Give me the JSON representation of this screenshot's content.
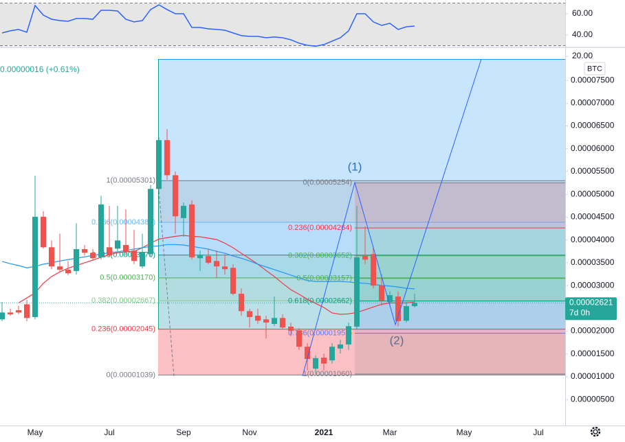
{
  "chart_data": {
    "type": "candlestick",
    "currency": "BTC",
    "legend_change": "0.00000016 (+0.61%)",
    "categories": [
      null,
      null,
      null,
      null,
      "May",
      null,
      null,
      null,
      null,
      null,
      null,
      null,
      null,
      "Jul",
      null,
      null,
      null,
      null,
      null,
      null,
      null,
      null,
      "Sep",
      null,
      null,
      null,
      null,
      null,
      null,
      null,
      "Nov",
      null,
      null,
      null,
      null,
      null,
      null,
      null,
      null,
      "2021",
      null,
      null,
      null,
      null,
      null,
      null,
      null,
      "Mar",
      null,
      null,
      null,
      null,
      null,
      null,
      null,
      null,
      "May",
      null,
      null,
      null,
      null,
      null,
      null,
      null,
      null,
      "Jul"
    ],
    "up_color": "#26a69a",
    "down_color": "#ef5350",
    "open": [
      2.26e-05,
      2.41e-05,
      2.46e-05,
      2.59e-05,
      2.31e-05,
      4.51e-05,
      3.84e-05,
      3.42e-05,
      3.35e-05,
      3.32e-05,
      3.8e-05,
      3.72e-05,
      3.62e-05,
      3.84e-05,
      3.81e-05,
      3.89e-05,
      3.77e-05,
      3.42e-05,
      3.69e-05,
      5.12e-05,
      6.19e-05,
      5.42e-05,
      4.48e-05,
      4.78e-05,
      3.6e-05,
      3.65e-05,
      3.54e-05,
      3.42e-05,
      3.39e-05,
      2.82e-05,
      2.44e-05,
      2.34e-05,
      2.26e-05,
      2.16e-05,
      2.29e-05,
      2.1e-05,
      2.01e-05,
      1.66e-05,
      1.18e-05,
      1.42e-05,
      1.36e-05,
      1.62e-05,
      1.71e-05,
      2.1e-05,
      3.65e-05,
      3.69e-05,
      3e-05,
      2.64e-05,
      2.76e-05,
      2.23e-05,
      2.55e-05,
      null,
      null,
      null,
      null,
      null,
      null,
      null,
      null,
      null,
      null,
      null,
      null,
      null,
      null,
      null
    ],
    "high": [
      2.64e-05,
      2.49e-05,
      2.56e-05,
      2.69e-05,
      5.41e-05,
      4.63e-05,
      3.99e-05,
      4.14e-05,
      3.54e-05,
      4.37e-05,
      3.89e-05,
      3.8e-05,
      4.97e-05,
      4.75e-05,
      4.75e-05,
      4.67e-05,
      4.22e-05,
      4.14e-05,
      5.2e-05,
      6.25e-05,
      6.43e-05,
      5.5e-05,
      4.82e-05,
      4.87e-05,
      3.77e-05,
      3.81e-05,
      3.77e-05,
      3.69e-05,
      3.47e-05,
      2.94e-05,
      2.49e-05,
      2.49e-05,
      2.34e-05,
      2.76e-05,
      2.37e-05,
      2.19e-05,
      2.07e-05,
      1.74e-05,
      1.47e-05,
      1.51e-05,
      1.74e-05,
      1.81e-05,
      2.19e-05,
      4.75e-05,
      4.3e-05,
      3.84e-05,
      3.24e-05,
      2.87e-05,
      2.87e-05,
      2.64e-05,
      2.82e-05,
      null,
      null,
      null,
      null,
      null,
      null,
      null,
      null,
      null,
      null,
      null,
      null,
      null,
      null,
      null
    ],
    "low": [
      2.22e-05,
      2.34e-05,
      2.37e-05,
      2.22e-05,
      2.26e-05,
      3.81e-05,
      3.36e-05,
      3.3e-05,
      3.23e-05,
      3.24e-05,
      3.66e-05,
      3.54e-05,
      3.57e-05,
      3.62e-05,
      3.72e-05,
      3.66e-05,
      3.47e-05,
      3.38e-05,
      3.62e-05,
      5.05e-05,
      5.32e-05,
      4.14e-05,
      4.07e-05,
      3.57e-05,
      3.32e-05,
      3.47e-05,
      3.17e-05,
      3.24e-05,
      2.79e-05,
      2.34e-05,
      2.08e-05,
      2.16e-05,
      1.84e-05,
      2.11e-05,
      2.04e-05,
      1.89e-05,
      1.59e-05,
      1.14e-05,
      1.06e-05,
      1.14e-05,
      1.29e-05,
      1.51e-05,
      1.59e-05,
      2.04e-05,
      3.47e-05,
      2.94e-05,
      2.56e-05,
      2.56e-05,
      2.11e-05,
      2.19e-05,
      2.52e-05,
      null,
      null,
      null,
      null,
      null,
      null,
      null,
      null,
      null,
      null,
      null,
      null,
      null,
      null,
      null
    ],
    "close": [
      2.41e-05,
      2.37e-05,
      2.41e-05,
      2.29e-05,
      4.51e-05,
      3.84e-05,
      3.42e-05,
      3.35e-05,
      3.27e-05,
      3.8e-05,
      3.72e-05,
      3.6e-05,
      4.78e-05,
      3.66e-05,
      3.99e-05,
      3.74e-05,
      3.54e-05,
      3.74e-05,
      5.12e-05,
      6.19e-05,
      5.42e-05,
      4.52e-05,
      4.75e-05,
      3.62e-05,
      3.66e-05,
      3.5e-05,
      3.42e-05,
      3.36e-05,
      2.82e-05,
      2.44e-05,
      2.31e-05,
      2.23e-05,
      2.19e-05,
      2.29e-05,
      2.08e-05,
      2.01e-05,
      1.66e-05,
      1.39e-05,
      1.41e-05,
      1.29e-05,
      1.66e-05,
      1.71e-05,
      2.11e-05,
      3.62e-05,
      3.57e-05,
      3e-05,
      2.67e-05,
      2.79e-05,
      2.22e-05,
      2.55e-05,
      2.621e-05,
      null,
      null,
      null,
      null,
      null,
      null,
      null,
      null,
      null,
      null,
      null,
      null,
      null,
      null,
      null
    ],
    "overlays": [
      {
        "color": "#f23645",
        "values": [
          null,
          null,
          2.62e-05,
          2.73e-05,
          2.84e-05,
          3.05e-05,
          3.2e-05,
          3.3e-05,
          3.38e-05,
          3.44e-05,
          3.5e-05,
          3.56e-05,
          3.62e-05,
          3.68e-05,
          3.72e-05,
          3.74e-05,
          3.75e-05,
          3.83e-05,
          3.93e-05,
          4.02e-05,
          4.05e-05,
          4.08e-05,
          4.1e-05,
          4.08e-05,
          4.07e-05,
          4.04e-05,
          4.01e-05,
          3.93e-05,
          3.83e-05,
          3.71e-05,
          3.59e-05,
          3.47e-05,
          3.33e-05,
          3.2e-05,
          3.05e-05,
          2.91e-05,
          2.81e-05,
          2.7e-05,
          2.61e-05,
          2.52e-05,
          2.4e-05,
          2.37e-05,
          2.38e-05,
          2.41e-05,
          2.47e-05,
          2.53e-05,
          2.59e-05,
          2.62e-05,
          2.62e-05,
          2.62e-05,
          2.64e-05,
          null,
          null,
          null,
          null,
          null,
          null,
          null,
          null,
          null,
          null,
          null,
          null,
          null,
          null,
          null
        ]
      },
      {
        "color": "#2196f3",
        "values": [
          3.53e-05,
          3.48e-05,
          3.44e-05,
          3.39e-05,
          3.42e-05,
          3.47e-05,
          3.5e-05,
          3.54e-05,
          3.57e-05,
          3.6e-05,
          3.63e-05,
          3.66e-05,
          3.69e-05,
          3.72e-05,
          3.74e-05,
          3.77e-05,
          3.8e-05,
          3.83e-05,
          3.86e-05,
          3.87e-05,
          3.9e-05,
          3.9e-05,
          3.89e-05,
          3.86e-05,
          3.83e-05,
          3.8e-05,
          3.75e-05,
          3.71e-05,
          3.65e-05,
          3.6e-05,
          3.54e-05,
          3.47e-05,
          3.41e-05,
          3.35e-05,
          3.29e-05,
          3.23e-05,
          3.17e-05,
          3.11e-05,
          3.09e-05,
          3.09e-05,
          3.09e-05,
          3.09e-05,
          3.08e-05,
          3.06e-05,
          3.05e-05,
          3.03e-05,
          3e-05,
          2.99e-05,
          2.97e-05,
          2.94e-05,
          2.93e-05,
          null,
          null,
          null,
          null,
          null,
          null,
          null,
          null,
          null,
          null,
          null,
          null,
          null,
          null,
          null
        ]
      }
    ],
    "ylim": [
      7e-08,
      7.968e-05
    ],
    "yticks": [
      {
        "value": 7.5e-05,
        "label": "0.00007500"
      },
      {
        "value": 7e-05,
        "label": "0.00007000"
      },
      {
        "value": 6.5e-05,
        "label": "0.00006500"
      },
      {
        "value": 6e-05,
        "label": "0.00006000"
      },
      {
        "value": 5.5e-05,
        "label": "0.00005500"
      },
      {
        "value": 5e-05,
        "label": "0.00005000"
      },
      {
        "value": 4.5e-05,
        "label": "0.00004500"
      },
      {
        "value": 4e-05,
        "label": "0.00004000"
      },
      {
        "value": 3.5e-05,
        "label": "0.00003500"
      },
      {
        "value": 3e-05,
        "label": "0.00003000"
      },
      {
        "value": 2.5e-05,
        "label": "0.00002500"
      },
      {
        "value": 2e-05,
        "label": "0.00002000"
      },
      {
        "value": 1.5e-05,
        "label": "0.00001500"
      },
      {
        "value": 1e-05,
        "label": "0.00001000"
      },
      {
        "value": 5e-06,
        "label": "0.00000500"
      }
    ],
    "last_price": {
      "value": 2.621e-05,
      "label": "0.00002621"
    },
    "countdown": "7d 0h",
    "rsi": {
      "color": "#2962ff",
      "values": [
        41.9,
        43.9,
        45.2,
        42.6,
        67.7,
        58.7,
        54.8,
        53.5,
        52.9,
        55.5,
        55.5,
        54.8,
        63.2,
        63.2,
        62.6,
        54.8,
        52.3,
        53.5,
        63.9,
        68.4,
        63.9,
        60,
        60,
        47.1,
        47.1,
        45.8,
        45.2,
        44.5,
        41.9,
        39.4,
        38.7,
        38.7,
        37.4,
        38.1,
        37.4,
        35.5,
        32.3,
        30.3,
        29.4,
        31.0,
        34.2,
        37.4,
        43.9,
        60,
        60,
        52.3,
        49.0,
        51.0,
        45.2,
        47.7,
        48.4,
        null,
        null,
        null,
        null,
        null,
        null,
        null,
        null,
        null,
        null,
        null,
        null,
        null,
        null,
        null
      ],
      "ylim": [
        29,
        72.9
      ],
      "yticks": [
        {
          "value": 60,
          "label": "60.00"
        },
        {
          "value": 40,
          "label": "40.00"
        },
        {
          "value": 20,
          "label": "20.00"
        }
      ]
    },
    "fibs": [
      {
        "levels": [
          {
            "value": 1.039e-05,
            "label": "0(0.00001039)",
            "color": "#787b86"
          },
          {
            "value": 2.045e-05,
            "label": "0.236(0.00002045)",
            "color": "#f23645"
          },
          {
            "value": 2.667e-05,
            "label": "0.382(0.00002667)",
            "color": "#81c784"
          },
          {
            "value": 3.17e-05,
            "label": "0.5(0.00003170)",
            "color": "#4caf50"
          },
          {
            "value": 3.67e-05,
            "label": "0.618(0.00003670)",
            "color": "#089981"
          },
          {
            "value": 4.388e-05,
            "label": "0.786(0.00004388)",
            "color": "#64b5f6"
          },
          {
            "value": 5.301e-05,
            "label": "1(0.00005301)",
            "color": "#787b86"
          }
        ]
      },
      {
        "levels": [
          {
            "value": 5.254e-05,
            "label": "0(0.00005254)",
            "color": "#787b86"
          },
          {
            "value": 4.264e-05,
            "label": "0.236(0.00004264)",
            "color": "#f23645"
          },
          {
            "value": 3.652e-05,
            "label": "0.382(0.00003652)",
            "color": "#4caf50"
          },
          {
            "value": 3.157e-05,
            "label": "0.5(0.00003157)",
            "color": "#4caf50"
          },
          {
            "value": 2.662e-05,
            "label": "0.618(0.00002662)",
            "color": "#089981"
          },
          {
            "value": 1.955e-05,
            "label": "0.786(0.00001955)",
            "color": "#5c7cfa"
          },
          {
            "value": 1.06e-05,
            "label": "1(0.00001060)",
            "color": "#787b86"
          }
        ]
      }
    ],
    "annotations": [
      "(1)",
      "(2)"
    ]
  }
}
